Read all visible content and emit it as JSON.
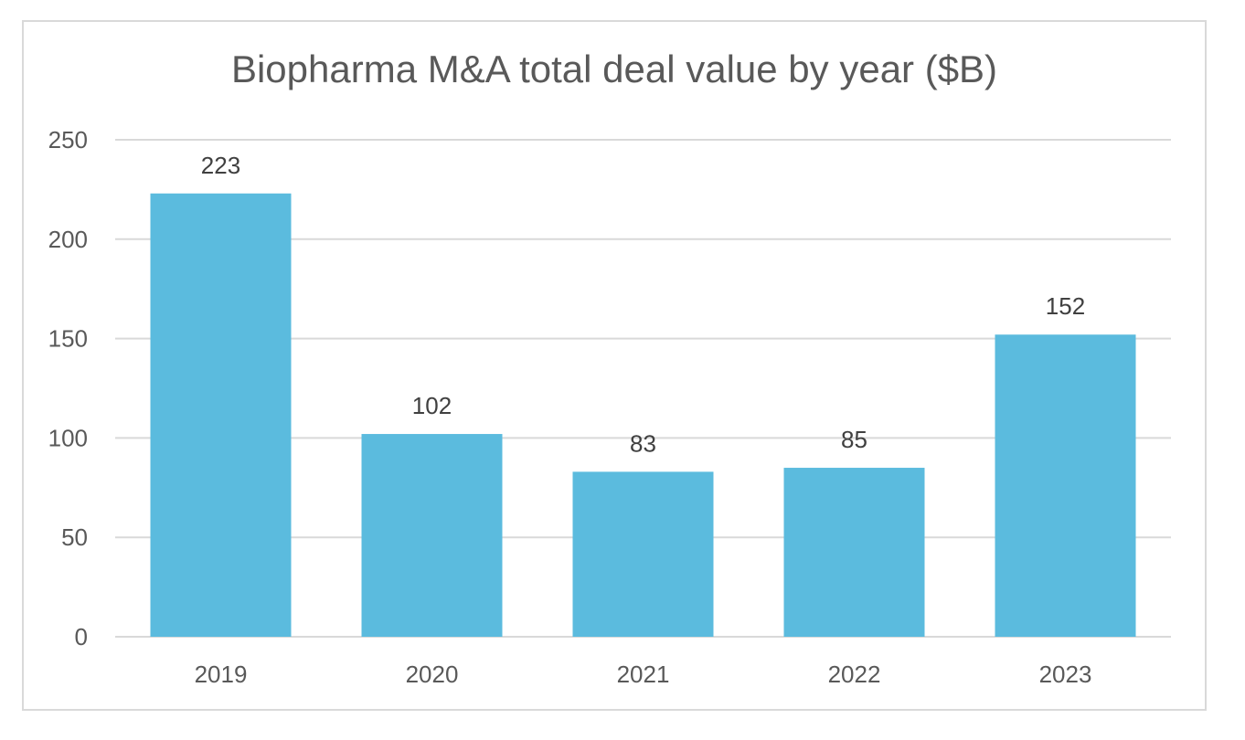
{
  "chart_data": {
    "type": "bar",
    "title": "Biopharma M&A total deal value by year ($B)",
    "categories": [
      "2019",
      "2020",
      "2021",
      "2022",
      "2023"
    ],
    "values": [
      223,
      102,
      83,
      85,
      152
    ],
    "data_labels": [
      "223",
      "102",
      "83",
      "85",
      "152"
    ],
    "y_ticks": [
      "0",
      "50",
      "100",
      "150",
      "200",
      "250"
    ],
    "ylim": [
      0,
      250
    ],
    "grid": true,
    "legend": "none",
    "xlabel": "",
    "ylabel": "",
    "colors": {
      "bar": "#5bbbde",
      "grid": "#d9d9d9",
      "axis_text": "#595959",
      "title": "#595959",
      "border": "#d9d9d9"
    }
  }
}
